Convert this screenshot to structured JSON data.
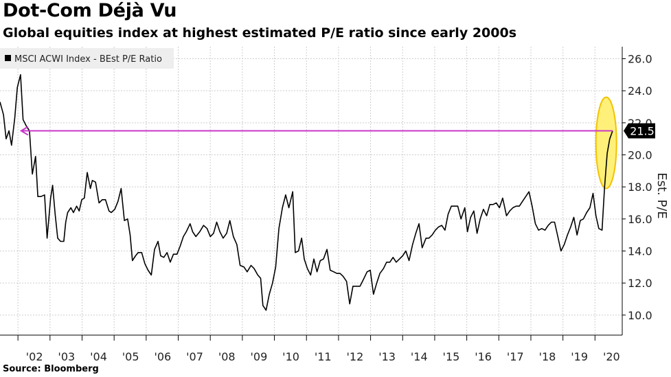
{
  "title": "Dot-Com Déjà Vu",
  "subtitle": "Global equities index at highest estimated P/E ratio since early 2000s",
  "source": "Source: Bloomberg",
  "colors": {
    "series": "#000000",
    "arrow": "#c837c8",
    "highlight_fill": "#fff07a",
    "highlight_stroke": "#f2c200",
    "grid": "#cccccc",
    "callout_bg": "#000000",
    "legend_bg": "#eeeeee"
  },
  "chart_data": {
    "type": "line",
    "title": "Dot-Com Déjà Vu",
    "subtitle": "Global equities index at highest estimated P/E ratio since early 2000s",
    "xlabel": "",
    "ylabel": "Est. P/E",
    "xlim": [
      2001.44,
      2020.85
    ],
    "ylim": [
      8.75,
      26.75
    ],
    "y_ticks": [
      10.0,
      12.0,
      14.0,
      16.0,
      18.0,
      20.0,
      22.0,
      24.0,
      26.0
    ],
    "y_tick_labels": [
      "10.0",
      "12.0",
      "14.0",
      "16.0",
      "18.0",
      "20.0",
      "22.0",
      "24.0",
      "26.0"
    ],
    "x_ticks": [
      2002,
      2003,
      2004,
      2005,
      2006,
      2007,
      2008,
      2009,
      2010,
      2011,
      2012,
      2013,
      2014,
      2015,
      2016,
      2017,
      2018,
      2019,
      2020
    ],
    "x_tick_labels": [
      "'02",
      "'03",
      "'04",
      "'05",
      "'06",
      "'07",
      "'08",
      "'09",
      "'10",
      "'11",
      "'12",
      "'13",
      "'14",
      "'15",
      "'16",
      "'17",
      "'18",
      "'19",
      "'20"
    ],
    "grid": true,
    "legend": {
      "position": "top-left",
      "entries": [
        "MSCI ACWI Index - BEst P/E Ratio"
      ]
    },
    "series": [
      {
        "name": "MSCI ACWI Index - BEst P/E Ratio",
        "x": [
          2001.44,
          2001.55,
          2001.63,
          2001.72,
          2001.8,
          2001.9,
          2001.98,
          2002.08,
          2002.16,
          2002.26,
          2002.36,
          2002.45,
          2002.55,
          2002.62,
          2002.72,
          2002.83,
          2002.91,
          2003.02,
          2003.08,
          2003.16,
          2003.24,
          2003.33,
          2003.43,
          2003.49,
          2003.55,
          2003.65,
          2003.73,
          2003.83,
          2003.91,
          2003.99,
          2004.07,
          2004.16,
          2004.26,
          2004.32,
          2004.42,
          2004.53,
          2004.63,
          2004.73,
          2004.84,
          2004.91,
          2005.02,
          2005.12,
          2005.22,
          2005.32,
          2005.42,
          2005.5,
          2005.57,
          2005.67,
          2005.75,
          2005.86,
          2005.96,
          2006.06,
          2006.16,
          2006.26,
          2006.37,
          2006.45,
          2006.55,
          2006.65,
          2006.75,
          2006.85,
          2006.96,
          2007.06,
          2007.16,
          2007.25,
          2007.37,
          2007.45,
          2007.55,
          2007.67,
          2007.79,
          2007.9,
          2008.0,
          2008.1,
          2008.2,
          2008.3,
          2008.4,
          2008.51,
          2008.61,
          2008.72,
          2008.83,
          2008.93,
          2009.05,
          2009.15,
          2009.27,
          2009.37,
          2009.48,
          2009.57,
          2009.64,
          2009.74,
          2009.84,
          2009.94,
          2010.04,
          2010.14,
          2010.25,
          2010.35,
          2010.45,
          2010.57,
          2010.65,
          2010.75,
          2010.85,
          2010.93,
          2011.03,
          2011.13,
          2011.23,
          2011.33,
          2011.43,
          2011.53,
          2011.64,
          2011.74,
          2011.85,
          2011.95,
          2012.05,
          2012.15,
          2012.25,
          2012.35,
          2012.45,
          2012.55,
          2012.67,
          2012.77,
          2012.89,
          2012.99,
          2013.09,
          2013.19,
          2013.29,
          2013.4,
          2013.5,
          2013.6,
          2013.7,
          2013.8,
          2013.9,
          2014.0,
          2014.1,
          2014.2,
          2014.31,
          2014.41,
          2014.51,
          2014.61,
          2014.73,
          2014.82,
          2014.92,
          2015.02,
          2015.12,
          2015.22,
          2015.32,
          2015.42,
          2015.52,
          2015.62,
          2015.72,
          2015.82,
          2015.94,
          2016.02,
          2016.12,
          2016.22,
          2016.32,
          2016.42,
          2016.52,
          2016.62,
          2016.72,
          2016.82,
          2016.92,
          2017.02,
          2017.12,
          2017.24,
          2017.34,
          2017.44,
          2017.54,
          2017.64,
          2017.74,
          2017.84,
          2017.94,
          2018.04,
          2018.14,
          2018.24,
          2018.34,
          2018.44,
          2018.54,
          2018.64,
          2018.74,
          2018.84,
          2018.94,
          2019.04,
          2019.14,
          2019.24,
          2019.34,
          2019.44,
          2019.54,
          2019.64,
          2019.74,
          2019.84,
          2019.94,
          2020.03,
          2020.12,
          2020.22,
          2020.3,
          2020.38,
          2020.46,
          2020.55
        ],
        "values": [
          23.3,
          22.5,
          21.0,
          21.5,
          20.6,
          22.3,
          24.2,
          25.0,
          22.2,
          21.8,
          21.5,
          18.8,
          19.9,
          17.4,
          17.4,
          17.5,
          14.8,
          17.3,
          18.1,
          16.3,
          14.8,
          14.6,
          14.6,
          15.8,
          16.4,
          16.7,
          16.4,
          16.8,
          16.5,
          17.2,
          17.3,
          18.9,
          17.9,
          18.4,
          18.3,
          17.0,
          17.2,
          17.2,
          16.5,
          16.4,
          16.6,
          17.1,
          17.9,
          15.9,
          16.0,
          15.0,
          13.4,
          13.7,
          13.9,
          13.9,
          13.2,
          12.8,
          12.5,
          14.1,
          14.6,
          13.7,
          13.6,
          13.9,
          13.3,
          13.8,
          13.8,
          14.3,
          14.9,
          15.2,
          15.7,
          15.2,
          14.9,
          15.2,
          15.6,
          15.4,
          14.9,
          15.1,
          15.8,
          15.2,
          14.8,
          15.1,
          15.9,
          14.9,
          14.4,
          13.1,
          13.0,
          12.7,
          13.1,
          12.9,
          12.5,
          12.3,
          10.6,
          10.3,
          11.3,
          12.0,
          13.0,
          15.4,
          16.7,
          17.5,
          16.7,
          17.7,
          13.9,
          14.0,
          14.8,
          13.5,
          12.9,
          12.5,
          13.5,
          12.7,
          13.4,
          13.5,
          14.1,
          12.8,
          12.7,
          12.6,
          12.6,
          12.4,
          12.1,
          10.7,
          11.8,
          11.8,
          11.8,
          12.2,
          12.7,
          12.8,
          11.3,
          12.0,
          12.6,
          12.9,
          13.3,
          13.3,
          13.6,
          13.3,
          13.5,
          13.7,
          14.0,
          13.4,
          14.4,
          15.1,
          15.7,
          14.2,
          14.8,
          14.8,
          15.0,
          15.3,
          15.5,
          15.6,
          15.3,
          16.3,
          16.8,
          16.8,
          16.8,
          16.0,
          16.7,
          15.2,
          16.1,
          16.5,
          15.1,
          16.0,
          16.6,
          16.2,
          16.9,
          16.9,
          17.0,
          16.7,
          17.3,
          16.2,
          16.5,
          16.7,
          16.8,
          16.8,
          17.1,
          17.4,
          17.7,
          16.8,
          15.7,
          15.3,
          15.4,
          15.3,
          15.6,
          15.8,
          15.8,
          14.9,
          14.0,
          14.4,
          15.0,
          15.5,
          16.1,
          15.0,
          15.9,
          16.0,
          16.4,
          16.7,
          17.6,
          16.2,
          15.4,
          15.3,
          18.0,
          20.1,
          21.0,
          21.5
        ]
      }
    ],
    "annotations": [
      {
        "type": "callout",
        "text": "21.5",
        "y": 21.5
      },
      {
        "type": "arrow",
        "from_x": 2020.55,
        "to_x": 2002.1,
        "y": 21.5,
        "note": "magenta arrow pointing left at the 21.5 level"
      },
      {
        "type": "highlight-ellipse",
        "x": 2020.35,
        "y_range": [
          17.9,
          23.6
        ]
      }
    ]
  }
}
